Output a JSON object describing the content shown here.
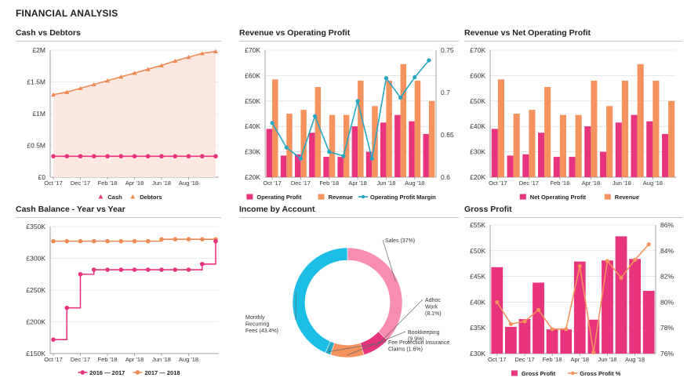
{
  "page": {
    "title": "FINANCIAL ANALYSIS"
  },
  "colors": {
    "pink": "#E8337D",
    "orange": "#F5925E",
    "orange_line": "#F08A55",
    "teal": "#25A6C2",
    "light_pink": "#F98DB0",
    "cyan": "#1DBEE6",
    "area_fill": "#FCE7E1",
    "grid": "#D9D9D9"
  },
  "months": [
    "Oct '17",
    "Dec '17",
    "Feb '18",
    "Apr '18",
    "Jun '18",
    "Aug '18"
  ],
  "chart_data": [
    {
      "id": "cash_debtors",
      "type": "line",
      "title": "Cash vs Debtors",
      "x_count": 12,
      "x_tick_labels": [
        "Oct '17",
        "Dec '17",
        "Feb '18",
        "Apr '18",
        "Jun '18",
        "Aug '18"
      ],
      "y_ticks": [
        "£0",
        "£0.5M",
        "£1M",
        "£1.5M",
        "£2M"
      ],
      "ylim": [
        0,
        2000000
      ],
      "series": [
        {
          "name": "Cash",
          "values": [
            330000,
            330000,
            330000,
            330000,
            330000,
            330000,
            330000,
            330000,
            330000,
            330000,
            330000,
            330000,
            330000
          ]
        },
        {
          "name": "Debtors",
          "values": [
            1300000,
            1340000,
            1400000,
            1460000,
            1520000,
            1580000,
            1640000,
            1700000,
            1760000,
            1830000,
            1890000,
            1950000,
            1980000
          ]
        }
      ],
      "legend": [
        "Cash",
        "Debtors"
      ]
    },
    {
      "id": "revenue_op",
      "type": "bar",
      "title": "Revenue vs Operating Profit",
      "x_tick_labels": [
        "Oct '17",
        "Dec '17",
        "Feb '18",
        "Apr '18",
        "Jun '18",
        "Aug '18"
      ],
      "y_ticks": [
        "£20K",
        "£30K",
        "£40K",
        "£50K",
        "£60K",
        "£70K"
      ],
      "ylim": [
        20000,
        70000
      ],
      "y2_ticks": [
        "0.6",
        "0.65",
        "0.7",
        "0.75"
      ],
      "y2lim": [
        0.6,
        0.75
      ],
      "series": [
        {
          "name": "Operating Profit",
          "values": [
            39000,
            28500,
            29000,
            37500,
            28000,
            28000,
            40000,
            30000,
            41500,
            44500,
            42000,
            37000
          ]
        },
        {
          "name": "Revenue",
          "values": [
            58500,
            45000,
            46500,
            55500,
            44500,
            44500,
            58000,
            48000,
            58000,
            64500,
            58000,
            50000
          ]
        },
        {
          "name": "Operating Profit Margin",
          "values": [
            0.664,
            0.635,
            0.622,
            0.672,
            0.63,
            0.625,
            0.69,
            0.622,
            0.717,
            0.694,
            0.718,
            0.738
          ]
        }
      ],
      "legend": [
        "Operating Profit",
        "Revenue",
        "Operating Profit Margin"
      ]
    },
    {
      "id": "revenue_nop",
      "type": "bar",
      "title": "Revenue vs Net Operating Profit",
      "x_tick_labels": [
        "Oct '17",
        "Dec '17",
        "Feb '18",
        "Apr '18",
        "Jun '18",
        "Aug '18"
      ],
      "y_ticks": [
        "£20K",
        "£30K",
        "£40K",
        "£50K",
        "£60K",
        "£70K"
      ],
      "ylim": [
        20000,
        70000
      ],
      "series": [
        {
          "name": "Net Operating Profit",
          "values": [
            39000,
            28500,
            29000,
            37500,
            28000,
            28000,
            40000,
            30000,
            41500,
            44500,
            42000,
            37000
          ]
        },
        {
          "name": "Revenue",
          "values": [
            58500,
            45000,
            46500,
            55500,
            44500,
            44500,
            58000,
            48000,
            58000,
            64500,
            58000,
            50000
          ]
        }
      ],
      "legend": [
        "Net Operating Profit",
        "Revenue"
      ]
    },
    {
      "id": "cash_balance",
      "type": "line",
      "title": "Cash Balance - Year vs Year",
      "x_count": 12,
      "x_tick_labels": [
        "Oct '17",
        "Dec '17",
        "Feb '18",
        "Apr '18",
        "Jun '18",
        "Aug '18"
      ],
      "y_ticks": [
        "£150K",
        "£200K",
        "£250K",
        "£300K",
        "£350K"
      ],
      "ylim": [
        150000,
        350000
      ],
      "series": [
        {
          "name": "2016 — 2017",
          "values": [
            172000,
            222000,
            275000,
            282000,
            282000,
            282000,
            282000,
            282000,
            282000,
            282000,
            282000,
            291000,
            327000
          ]
        },
        {
          "name": "2017 — 2018",
          "values": [
            327000,
            327000,
            327000,
            327000,
            327000,
            327000,
            327000,
            327000,
            330000,
            330000,
            330000,
            330000,
            330000
          ]
        }
      ],
      "legend": [
        "2016 — 2017",
        "2017 — 2018"
      ]
    },
    {
      "id": "income_account",
      "type": "pie",
      "title": "Income by Account",
      "slices": [
        {
          "label": "Sales (37%)",
          "value": 37.0
        },
        {
          "label": "Adhoc Work (8.1%)",
          "value": 8.1
        },
        {
          "label": "Bookkeeping (9.9%)",
          "value": 9.9
        },
        {
          "label": "Fee Protection Insurance Claims (1.6%)",
          "value": 1.6
        },
        {
          "label": "Monthly Recurring Fees (43.4%)",
          "value": 43.4
        }
      ],
      "label_lines": [
        [
          "Sales (37%)"
        ],
        [
          "Adhoc",
          "Work",
          "(8.1%)"
        ],
        [
          "Bookkeeping",
          "(9.9%)"
        ],
        [
          "Fee Protection Insurance",
          "Claims (1.6%)"
        ],
        [
          "Monthly",
          "Recurring",
          "Fees (43.4%)"
        ]
      ]
    },
    {
      "id": "gross_profit",
      "type": "bar",
      "title": "Gross Profit",
      "x_tick_labels": [
        "Oct '17",
        "Dec '17",
        "Feb '18",
        "Apr '18",
        "Jun '18",
        "Aug '18"
      ],
      "y_ticks": [
        "£30K",
        "£35K",
        "£40K",
        "£45K",
        "£50K",
        "£55K"
      ],
      "ylim": [
        30000,
        55000
      ],
      "y2_ticks": [
        "76%",
        "78%",
        "80%",
        "82%",
        "84%",
        "86%"
      ],
      "y2lim": [
        76,
        86
      ],
      "series": [
        {
          "name": "Gross Profit",
          "values": [
            46800,
            35200,
            36700,
            43800,
            34700,
            34700,
            47900,
            36600,
            48100,
            52800,
            48400,
            42200
          ]
        },
        {
          "name": "Gross Profit %",
          "values": [
            80.0,
            78.3,
            78.5,
            79.4,
            77.9,
            77.9,
            82.8,
            76.1,
            83.2,
            81.9,
            83.3,
            84.5
          ]
        }
      ],
      "legend": [
        "Gross Profit",
        "Gross Profit %"
      ]
    }
  ]
}
